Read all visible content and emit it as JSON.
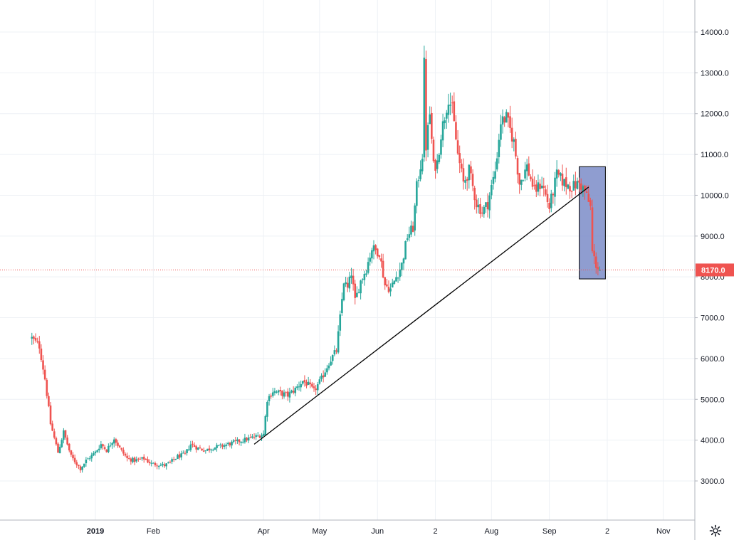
{
  "chart_data": {
    "type": "candlestick",
    "title": "",
    "xlabel": "",
    "ylabel": "",
    "ylim": [
      2000,
      14800
    ],
    "grid": true,
    "y_ticks": [
      "14000.0",
      "13000.0",
      "12000.0",
      "11000.0",
      "10000.0",
      "9000.0",
      "8000.0",
      "7000.0",
      "6000.0",
      "5000.0",
      "4000.0",
      "3000.0"
    ],
    "x_ticks": [
      {
        "label": "2019",
        "date": "2019-01-01",
        "bold": true
      },
      {
        "label": "Feb",
        "date": "2019-02-01",
        "bold": false
      },
      {
        "label": "Apr",
        "date": "2019-04-01",
        "bold": false
      },
      {
        "label": "May",
        "date": "2019-05-01",
        "bold": false
      },
      {
        "label": "Jun",
        "date": "2019-06-01",
        "bold": false
      },
      {
        "label": "2",
        "date": "2019-07-02",
        "bold": false
      },
      {
        "label": "Aug",
        "date": "2019-08-01",
        "bold": false
      },
      {
        "label": "Sep",
        "date": "2019-09-01",
        "bold": false
      },
      {
        "label": "2",
        "date": "2019-10-02",
        "bold": false
      },
      {
        "label": "Nov",
        "date": "2019-11-01",
        "bold": false
      }
    ],
    "current_price": {
      "value": 8170.0,
      "label": "8170.0"
    },
    "price_path": [
      [
        "2018-11-28",
        6500
      ],
      [
        "2018-12-02",
        6300
      ],
      [
        "2018-12-05",
        5500
      ],
      [
        "2018-12-08",
        4400
      ],
      [
        "2018-12-12",
        3700
      ],
      [
        "2018-12-15",
        4200
      ],
      [
        "2018-12-19",
        3600
      ],
      [
        "2018-12-24",
        3300
      ],
      [
        "2018-12-27",
        3500
      ],
      [
        "2019-01-01",
        3700
      ],
      [
        "2019-01-04",
        3900
      ],
      [
        "2019-01-07",
        3750
      ],
      [
        "2019-01-11",
        4050
      ],
      [
        "2019-01-14",
        3800
      ],
      [
        "2019-01-18",
        3550
      ],
      [
        "2019-01-22",
        3500
      ],
      [
        "2019-01-27",
        3550
      ],
      [
        "2019-01-31",
        3420
      ],
      [
        "2019-02-04",
        3400
      ],
      [
        "2019-02-07",
        3380
      ],
      [
        "2019-02-10",
        3450
      ],
      [
        "2019-02-14",
        3600
      ],
      [
        "2019-02-18",
        3650
      ],
      [
        "2019-02-21",
        3900
      ],
      [
        "2019-02-25",
        3800
      ],
      [
        "2019-03-01",
        3750
      ],
      [
        "2019-03-05",
        3820
      ],
      [
        "2019-03-09",
        3850
      ],
      [
        "2019-03-13",
        3900
      ],
      [
        "2019-03-17",
        3950
      ],
      [
        "2019-03-21",
        4000
      ],
      [
        "2019-03-25",
        4050
      ],
      [
        "2019-03-29",
        4100
      ],
      [
        "2019-04-01",
        4150
      ],
      [
        "2019-04-03",
        5000
      ],
      [
        "2019-04-06",
        5200
      ],
      [
        "2019-04-10",
        5150
      ],
      [
        "2019-04-14",
        5100
      ],
      [
        "2019-04-18",
        5250
      ],
      [
        "2019-04-22",
        5450
      ],
      [
        "2019-04-25",
        5350
      ],
      [
        "2019-04-28",
        5200
      ],
      [
        "2019-05-02",
        5500
      ],
      [
        "2019-05-06",
        5900
      ],
      [
        "2019-05-10",
        6200
      ],
      [
        "2019-05-12",
        7000
      ],
      [
        "2019-05-14",
        7900
      ],
      [
        "2019-05-16",
        7700
      ],
      [
        "2019-05-18",
        8100
      ],
      [
        "2019-05-20",
        7400
      ],
      [
        "2019-05-23",
        7900
      ],
      [
        "2019-05-26",
        8200
      ],
      [
        "2019-05-29",
        8700
      ],
      [
        "2019-06-02",
        8600
      ],
      [
        "2019-06-05",
        7800
      ],
      [
        "2019-06-08",
        7700
      ],
      [
        "2019-06-11",
        8000
      ],
      [
        "2019-06-14",
        8300
      ],
      [
        "2019-06-17",
        9000
      ],
      [
        "2019-06-20",
        9200
      ],
      [
        "2019-06-22",
        10200
      ],
      [
        "2019-06-25",
        11000
      ],
      [
        "2019-06-26",
        13200
      ],
      [
        "2019-06-27",
        11200
      ],
      [
        "2019-06-29",
        12000
      ],
      [
        "2019-07-01",
        10700
      ],
      [
        "2019-07-03",
        10800
      ],
      [
        "2019-07-05",
        11500
      ],
      [
        "2019-07-09",
        12400
      ],
      [
        "2019-07-11",
        12100
      ],
      [
        "2019-07-14",
        11000
      ],
      [
        "2019-07-17",
        10300
      ],
      [
        "2019-07-20",
        10600
      ],
      [
        "2019-07-24",
        9800
      ],
      [
        "2019-07-27",
        9600
      ],
      [
        "2019-07-30",
        9800
      ],
      [
        "2019-08-03",
        10600
      ],
      [
        "2019-08-06",
        11800
      ],
      [
        "2019-08-09",
        11900
      ],
      [
        "2019-08-13",
        11300
      ],
      [
        "2019-08-16",
        10300
      ],
      [
        "2019-08-20",
        10700
      ],
      [
        "2019-08-24",
        10100
      ],
      [
        "2019-08-28",
        10300
      ],
      [
        "2019-09-01",
        9700
      ],
      [
        "2019-09-05",
        10500
      ],
      [
        "2019-09-09",
        10300
      ],
      [
        "2019-09-13",
        10200
      ],
      [
        "2019-09-17",
        10300
      ],
      [
        "2019-09-20",
        10100
      ],
      [
        "2019-09-23",
        9700
      ],
      [
        "2019-09-24",
        8600
      ],
      [
        "2019-09-26",
        8300
      ],
      [
        "2019-09-28",
        8170
      ]
    ],
    "trendline": {
      "from": [
        "2019-03-27",
        3900
      ],
      "to": [
        "2019-09-22",
        10200
      ]
    },
    "highlight_box": {
      "from": [
        "2019-09-17",
        10700
      ],
      "to": [
        "2019-10-01",
        7950
      ]
    },
    "colors": {
      "up": "#26a69a",
      "down": "#ef5350",
      "grid": "#eef1f5",
      "axis": "#131722",
      "price_line": "#ef5350",
      "price_label_bg": "#ef5350",
      "trendline": "#000000",
      "highlight_fill": "#7b8cc8",
      "highlight_stroke": "#000000"
    }
  },
  "toolbar": {
    "settings_icon": "gear-icon"
  }
}
